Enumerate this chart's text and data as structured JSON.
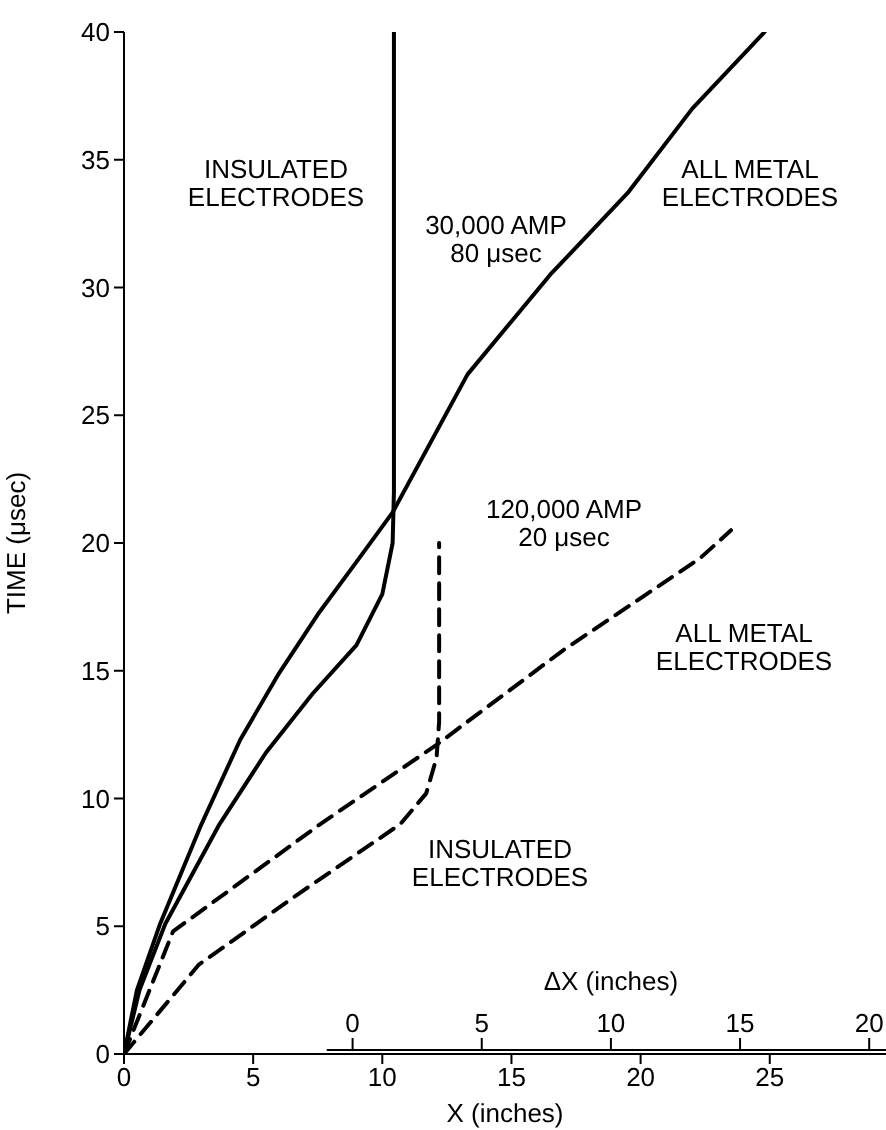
{
  "chart_data": {
    "type": "line",
    "xlabel": "X (inches)",
    "ylabel": "TIME (μsec)",
    "x2label": "ΔX (inches)",
    "xlim": [
      0,
      29.5
    ],
    "xticks": [
      0,
      5,
      10,
      15,
      20,
      25
    ],
    "ylim": [
      0,
      40
    ],
    "yticks": [
      0,
      5,
      10,
      15,
      20,
      25,
      30,
      35,
      40
    ],
    "x2lim": [
      -8.85,
      20.65
    ],
    "x2ticks": [
      0,
      5,
      10,
      15,
      20
    ],
    "grid": false,
    "legend": false,
    "marker": "none",
    "series": [
      {
        "color": "#000000",
        "line_style": "solid",
        "x": [
          0,
          0.5,
          1.4,
          3,
          4.5,
          6,
          7.5,
          9.1,
          10.4,
          13.3,
          16.5,
          19.5,
          22,
          24.8
        ],
        "values": [
          0,
          2.5,
          5.1,
          9,
          12.3,
          14.9,
          17.2,
          19.4,
          21.2,
          26.6,
          30.5,
          33.7,
          37,
          40
        ]
      },
      {
        "color": "#000000",
        "line_style": "solid",
        "x": [
          0,
          0.6,
          1.6,
          3.7,
          5.5,
          7.3,
          9,
          10,
          10.4,
          10.45,
          10.45
        ],
        "values": [
          0,
          2.5,
          5.1,
          9,
          11.8,
          14.1,
          16,
          18,
          20,
          22,
          40
        ]
      },
      {
        "color": "#000000",
        "line_style": "dashed",
        "x": [
          0,
          1.9,
          7.6,
          12.1,
          17,
          22.3,
          23.5
        ],
        "values": [
          0,
          4.8,
          9,
          12.1,
          15.8,
          19.4,
          20.5
        ]
      },
      {
        "color": "#000000",
        "line_style": "dashed",
        "x": [
          0,
          2.9,
          6.8,
          10.7,
          11.7,
          12.1,
          12.2,
          12.2
        ],
        "values": [
          0,
          3.5,
          6.3,
          9,
          10.2,
          11.6,
          13,
          20
        ]
      }
    ],
    "annotations": [
      "INSULATED\nELECTRODES",
      "30,000 AMP\n80 μsec",
      "ALL METAL\nELECTRODES",
      "120,000 AMP\n20 μsec",
      "ALL METAL\nELECTRODES",
      "INSULATED\nELECTRODES"
    ]
  }
}
